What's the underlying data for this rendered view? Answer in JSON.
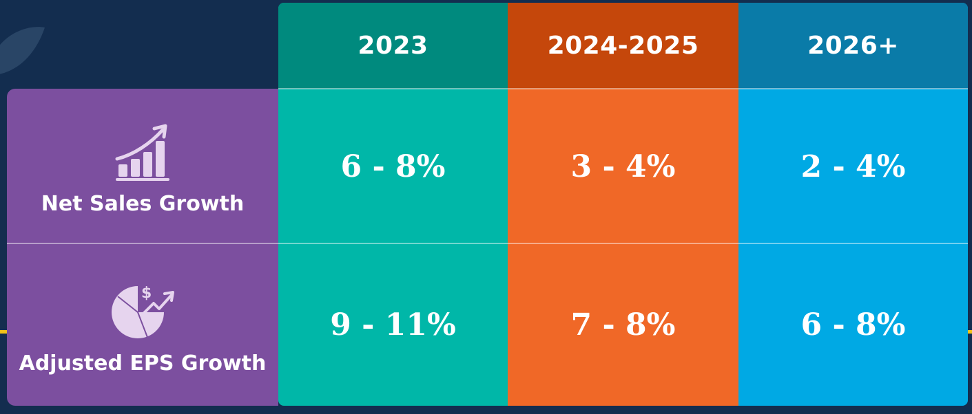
{
  "table": {
    "columns": [
      {
        "label": "2023",
        "color": "#00b7a8",
        "header_color": "#008a7e"
      },
      {
        "label": "2024-2025",
        "color": "#f06827",
        "header_color": "#c5470b"
      },
      {
        "label": "2026+",
        "color": "#00a9e4",
        "header_color": "#0a7ba8"
      }
    ],
    "rows": [
      {
        "label": "Net Sales Growth",
        "icon": "growth-chart-icon",
        "values": [
          "6 - 8%",
          "3 - 4%",
          "2 - 4%"
        ]
      },
      {
        "label": "Adjusted EPS Growth",
        "icon": "pie-chart-dollar-icon",
        "values": [
          "9 - 11%",
          "7 - 8%",
          "6 - 8%"
        ]
      }
    ],
    "label_color": "#7c4f9f",
    "background_color": "#132d4f",
    "accent_line_color": "#f2c318"
  }
}
